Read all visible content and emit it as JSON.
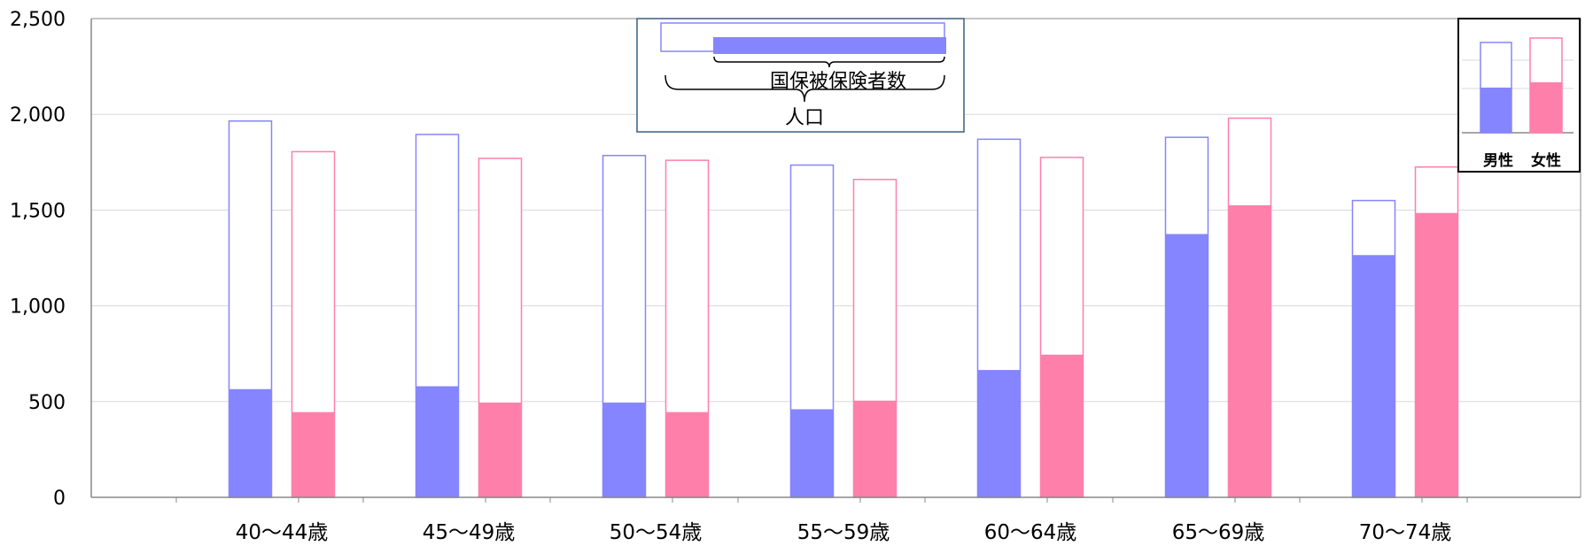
{
  "chart_data": {
    "type": "bar",
    "categories": [
      "40～44歳",
      "45～49歳",
      "50～54歳",
      "55～59歳",
      "60～64歳",
      "65～69歳",
      "70～74歳"
    ],
    "series": [
      {
        "name": "男性",
        "group": "人口",
        "values": [
          1965,
          1895,
          1785,
          1735,
          1870,
          1880,
          1550
        ]
      },
      {
        "name": "男性",
        "group": "国保被保険者数",
        "values": [
          565,
          580,
          495,
          460,
          665,
          1375,
          1265
        ]
      },
      {
        "name": "女性",
        "group": "人口",
        "values": [
          1805,
          1770,
          1760,
          1660,
          1775,
          1980,
          1725
        ]
      },
      {
        "name": "女性",
        "group": "国保被保険者数",
        "values": [
          445,
          495,
          445,
          505,
          745,
          1525,
          1485
        ]
      }
    ],
    "ylim": [
      0,
      2500
    ],
    "yticks": [
      "0",
      "500",
      "1,000",
      "1,500",
      "2,000",
      "2,500"
    ],
    "ytick_values": [
      0,
      500,
      1000,
      1500,
      2000,
      2500
    ],
    "grid": true,
    "colors": {
      "male": "#8585ff",
      "female": "#ff7fab",
      "grid": "#d9d9d9",
      "axis": "#888888"
    },
    "legend_structure": {
      "inner_label": "国保被保険者数",
      "outer_label": "人口",
      "placement": "top-center"
    },
    "legend_gender": {
      "male_label": "男性",
      "female_label": "女性",
      "placement": "top-right"
    }
  }
}
